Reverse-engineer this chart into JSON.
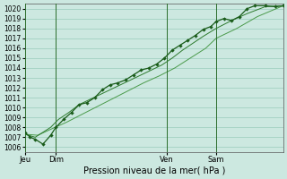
{
  "bg_color": "#cce8e0",
  "grid_color": "#99ccbb",
  "line_color_main": "#1a5c1a",
  "line_color_light": "#2d7a2d",
  "line_color_thin": "#4a9a4a",
  "xlabel": "Pression niveau de la mer( hPa )",
  "ylim": [
    1005.5,
    1020.5
  ],
  "yticks": [
    1006,
    1007,
    1008,
    1009,
    1010,
    1011,
    1012,
    1013,
    1014,
    1015,
    1016,
    1017,
    1018,
    1019,
    1020
  ],
  "xtick_labels": [
    "Jeu",
    "Dim",
    "Ven",
    "Sam"
  ],
  "xtick_positions": [
    0.0,
    0.12,
    0.55,
    0.74
  ],
  "vline_positions": [
    0.0,
    0.12,
    0.55,
    0.74
  ],
  "series1_x": [
    0.0,
    0.02,
    0.04,
    0.07,
    0.1,
    0.12,
    0.15,
    0.18,
    0.21,
    0.24,
    0.27,
    0.3,
    0.33,
    0.36,
    0.39,
    0.42,
    0.45,
    0.48,
    0.51,
    0.54,
    0.57,
    0.6,
    0.63,
    0.66,
    0.69,
    0.72,
    0.74,
    0.77,
    0.8,
    0.83,
    0.86,
    0.89,
    0.93,
    0.97,
    1.0
  ],
  "series1_y": [
    1007.5,
    1007.0,
    1006.8,
    1006.3,
    1007.2,
    1008.0,
    1008.8,
    1009.5,
    1010.3,
    1010.5,
    1011.0,
    1011.8,
    1012.3,
    1012.5,
    1012.8,
    1013.3,
    1013.8,
    1014.0,
    1014.4,
    1015.0,
    1015.8,
    1016.3,
    1016.8,
    1017.3,
    1017.9,
    1018.2,
    1018.7,
    1019.0,
    1018.8,
    1019.2,
    1020.0,
    1020.3,
    1020.3,
    1020.2,
    1020.3
  ],
  "series2_x": [
    0.0,
    0.04,
    0.07,
    0.1,
    0.13,
    0.17,
    0.21,
    0.25,
    0.29,
    0.33,
    0.37,
    0.41,
    0.45,
    0.49,
    0.53,
    0.57,
    0.61,
    0.65,
    0.69,
    0.74,
    0.8,
    0.86,
    0.93,
    1.0
  ],
  "series2_y": [
    1007.3,
    1007.0,
    1007.5,
    1008.0,
    1008.8,
    1009.5,
    1010.3,
    1010.8,
    1011.3,
    1011.8,
    1012.3,
    1012.8,
    1013.3,
    1013.8,
    1014.3,
    1015.0,
    1015.8,
    1016.5,
    1017.2,
    1018.0,
    1018.8,
    1019.5,
    1020.2,
    1020.3
  ],
  "series3_x": [
    0.0,
    0.05,
    0.1,
    0.16,
    0.22,
    0.28,
    0.34,
    0.4,
    0.46,
    0.52,
    0.58,
    0.64,
    0.7,
    0.74,
    0.82,
    0.9,
    1.0
  ],
  "series3_y": [
    1007.3,
    1007.2,
    1007.8,
    1008.5,
    1009.3,
    1010.1,
    1010.9,
    1011.7,
    1012.5,
    1013.2,
    1014.0,
    1015.0,
    1016.0,
    1017.0,
    1018.0,
    1019.2,
    1020.3
  ]
}
